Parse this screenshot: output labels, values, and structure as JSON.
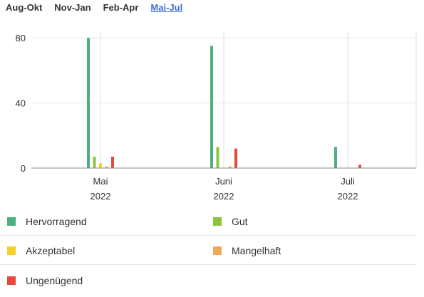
{
  "tabs": [
    {
      "label": "Aug-Okt",
      "active": false
    },
    {
      "label": "Nov-Jan",
      "active": false
    },
    {
      "label": "Feb-Apr",
      "active": false
    },
    {
      "label": "Mai-Jul",
      "active": true
    }
  ],
  "chart_data": {
    "type": "bar",
    "categories": [
      {
        "month": "Mai",
        "year": "2022"
      },
      {
        "month": "Juni",
        "year": "2022"
      },
      {
        "month": "Juli",
        "year": "2022"
      }
    ],
    "series": [
      {
        "name": "Hervorragend",
        "color": "#4caf7d",
        "values": [
          80,
          75,
          13
        ]
      },
      {
        "name": "Gut",
        "color": "#8cc63f",
        "values": [
          7,
          13,
          0
        ]
      },
      {
        "name": "Akzeptabel",
        "color": "#f5cf2d",
        "values": [
          3,
          0,
          0
        ]
      },
      {
        "name": "Mangelhaft",
        "color": "#f0a95a",
        "values": [
          1,
          1,
          0
        ]
      },
      {
        "name": "Ungenügend",
        "color": "#e8483a",
        "values": [
          7,
          12,
          2
        ]
      }
    ],
    "yticks": [
      0,
      40,
      80
    ],
    "ylim": [
      0,
      84
    ],
    "grid": true,
    "legend_position": "bottom"
  }
}
